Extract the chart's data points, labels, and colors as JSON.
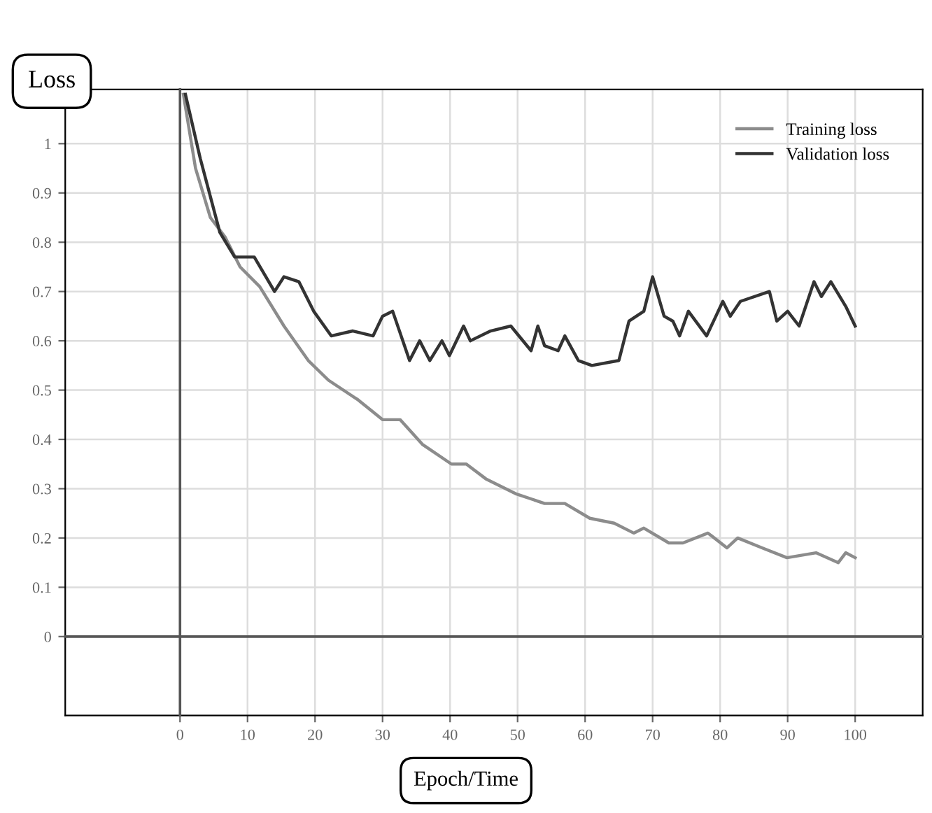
{
  "chart_data": {
    "type": "line",
    "title": "Loss",
    "xlabel": "Epoch/Time",
    "xlim": [
      -17,
      110
    ],
    "xticks": [
      0,
      10,
      20,
      30,
      40,
      50,
      60,
      70,
      80,
      90,
      100
    ],
    "ylim": [
      -0.16,
      1.11
    ],
    "yticks": [
      0,
      0.1,
      0.2,
      0.3,
      0.4,
      0.5,
      0.6,
      0.7,
      0.8,
      0.9,
      1
    ],
    "grid": true,
    "legend": "top right",
    "line_style": "solid",
    "series": [
      {
        "name": "Training loss",
        "color": "#8c8c8c",
        "x": [
          0.5,
          2.3,
          4.5,
          6.7,
          8.9,
          11.8,
          15.4,
          19,
          22,
          26.4,
          30,
          32.6,
          35.9,
          40.2,
          42.4,
          45.3,
          49.7,
          54,
          57,
          60.7,
          64.3,
          67.2,
          68.7,
          72.4,
          74.5,
          78.2,
          81,
          82.6,
          86.2,
          89.9,
          94.2,
          97.5,
          98.6,
          100
        ],
        "values": [
          1.1,
          0.95,
          0.85,
          0.81,
          0.75,
          0.71,
          0.63,
          0.56,
          0.52,
          0.48,
          0.44,
          0.44,
          0.39,
          0.35,
          0.35,
          0.32,
          0.29,
          0.27,
          0.27,
          0.24,
          0.23,
          0.21,
          0.22,
          0.19,
          0.19,
          0.21,
          0.18,
          0.2,
          0.18,
          0.16,
          0.17,
          0.15,
          0.17,
          0.16
        ]
      },
      {
        "name": "Validation loss",
        "color": "#333333",
        "x": [
          0.8,
          3,
          5.9,
          8.1,
          11,
          14,
          15.4,
          17.6,
          19.8,
          22.4,
          25.6,
          28.6,
          30,
          31.5,
          34,
          35.5,
          37,
          38.8,
          39.9,
          42,
          43,
          46,
          49,
          52,
          53,
          54,
          56,
          57,
          59,
          61,
          65,
          66.5,
          68.7,
          70,
          71.7,
          73,
          74,
          75.3,
          78,
          80.4,
          81.5,
          83,
          87.3,
          88.4,
          90,
          91.7,
          93.9,
          95,
          96.4,
          98.6,
          100
        ],
        "values": [
          1.1,
          0.97,
          0.82,
          0.77,
          0.77,
          0.7,
          0.73,
          0.72,
          0.66,
          0.61,
          0.62,
          0.61,
          0.65,
          0.66,
          0.56,
          0.6,
          0.56,
          0.6,
          0.57,
          0.63,
          0.6,
          0.62,
          0.63,
          0.58,
          0.63,
          0.59,
          0.58,
          0.61,
          0.56,
          0.55,
          0.56,
          0.64,
          0.66,
          0.73,
          0.65,
          0.64,
          0.61,
          0.66,
          0.61,
          0.68,
          0.65,
          0.68,
          0.7,
          0.64,
          0.66,
          0.63,
          0.72,
          0.69,
          0.72,
          0.67,
          0.63
        ]
      }
    ]
  }
}
